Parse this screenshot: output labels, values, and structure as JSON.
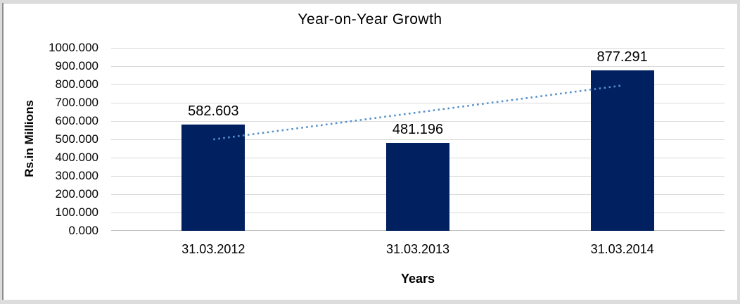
{
  "frame": {
    "outer_color": "#dcdcdc",
    "left_line_color": "#8f8f8f",
    "top_line_color": "#c6c6c6"
  },
  "chart_data": {
    "type": "bar",
    "title": "Year-on-Year Growth",
    "xlabel": "Years",
    "ylabel": "Rs.in Millions",
    "categories": [
      "31.03.2012",
      "31.03.2013",
      "31.03.2014"
    ],
    "values": [
      582.603,
      481.196,
      877.291
    ],
    "value_labels": [
      "582.603",
      "481.196",
      "877.291"
    ],
    "ylim": [
      0,
      1000
    ],
    "ytick_step": 100,
    "ytick_labels": [
      "0.000",
      "100.000",
      "200.000",
      "300.000",
      "400.000",
      "500.000",
      "600.000",
      "700.000",
      "800.000",
      "900.000",
      "1000.000"
    ],
    "grid": true,
    "legend": "none",
    "colors": {
      "bar": "#002060",
      "gridline": "#d9d9d9",
      "axis_line": "#c0c0c0",
      "text": "#000000",
      "trendline": "#5590cc"
    },
    "trendline": {
      "type": "linear",
      "style": "dotted",
      "start_value": 499.7,
      "end_value": 794.4
    }
  }
}
